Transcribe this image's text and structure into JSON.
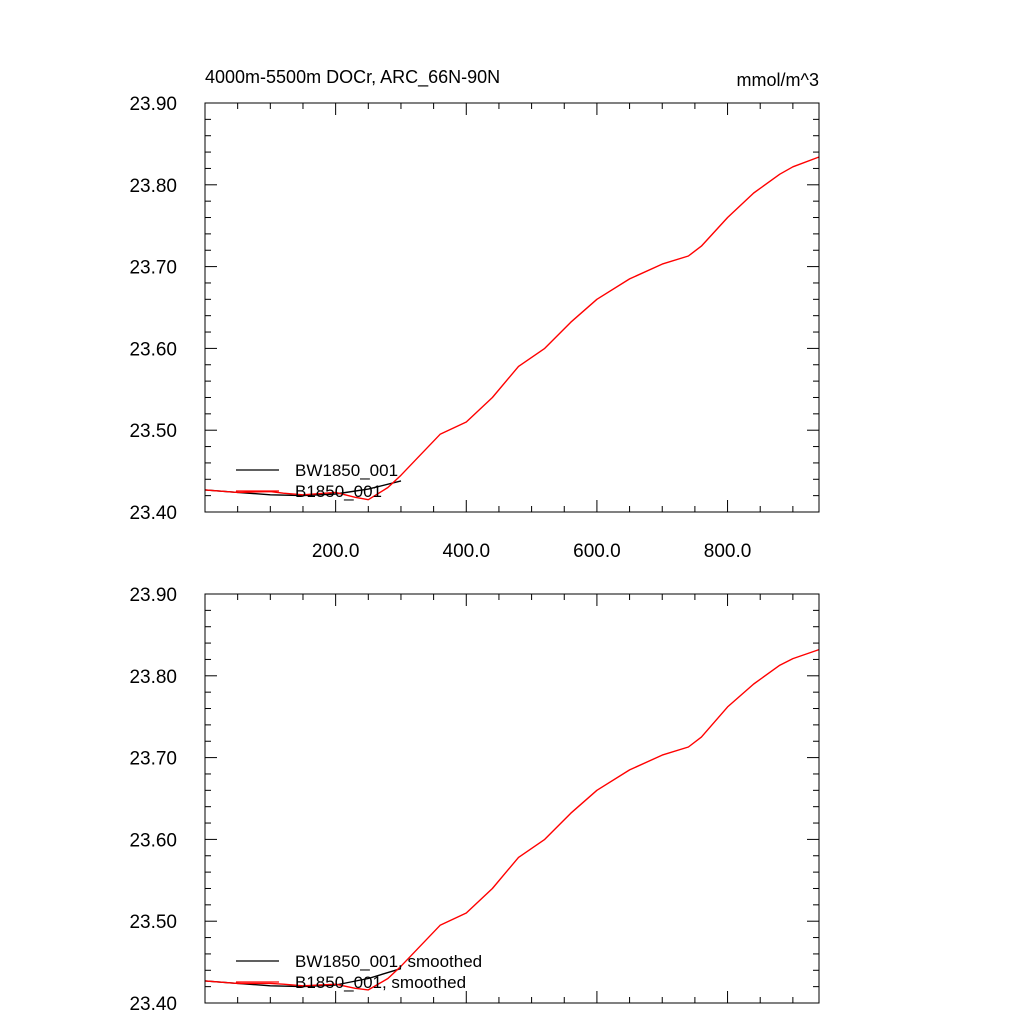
{
  "chart_data": [
    {
      "type": "line",
      "title": "4000m-5500m DOCr, ARC_66N-90N",
      "units": "mmol/m^3",
      "xlim": [
        0,
        940
      ],
      "ylim": [
        23.4,
        23.9
      ],
      "xticklabels": [
        "200.0",
        "400.0",
        "600.0",
        "800.0"
      ],
      "xtick_values": [
        200,
        400,
        600,
        800
      ],
      "yticklabels": [
        "23.40",
        "23.50",
        "23.60",
        "23.70",
        "23.80",
        "23.90"
      ],
      "ytick_values": [
        23.4,
        23.5,
        23.6,
        23.7,
        23.8,
        23.9
      ],
      "legend_position": "bottom-left",
      "series": [
        {
          "name": "BW1850_001",
          "color": "#000000",
          "x": [
            0,
            50,
            100,
            150,
            200,
            250,
            300
          ],
          "y": [
            23.427,
            23.424,
            23.421,
            23.42,
            23.422,
            23.428,
            23.438
          ]
        },
        {
          "name": "B1850_001",
          "color": "#ff0000",
          "x": [
            0,
            50,
            100,
            120,
            150,
            200,
            230,
            250,
            280,
            300,
            330,
            360,
            400,
            440,
            480,
            520,
            560,
            600,
            650,
            700,
            740,
            760,
            800,
            840,
            880,
            900,
            940
          ],
          "y": [
            23.427,
            23.424,
            23.425,
            23.423,
            23.421,
            23.424,
            23.418,
            23.415,
            23.43,
            23.445,
            23.47,
            23.495,
            23.51,
            23.54,
            23.578,
            23.6,
            23.632,
            23.66,
            23.685,
            23.703,
            23.713,
            23.725,
            23.76,
            23.79,
            23.813,
            23.822,
            23.834
          ]
        }
      ]
    },
    {
      "type": "line",
      "title": "",
      "xlim": [
        0,
        940
      ],
      "ylim": [
        23.4,
        23.9
      ],
      "xticklabels": [],
      "xtick_values": [
        200,
        400,
        600,
        800
      ],
      "yticklabels": [
        "23.40",
        "23.50",
        "23.60",
        "23.70",
        "23.80",
        "23.90"
      ],
      "ytick_values": [
        23.4,
        23.5,
        23.6,
        23.7,
        23.8,
        23.9
      ],
      "legend_position": "bottom-left",
      "series": [
        {
          "name": "BW1850_001, smoothed",
          "color": "#000000",
          "x": [
            0,
            50,
            100,
            150,
            200,
            250,
            300
          ],
          "y": [
            23.427,
            23.424,
            23.421,
            23.42,
            23.422,
            23.43,
            23.442
          ]
        },
        {
          "name": "B1850_001, smoothed",
          "color": "#ff0000",
          "x": [
            0,
            50,
            100,
            120,
            150,
            200,
            230,
            250,
            280,
            300,
            330,
            360,
            400,
            440,
            480,
            520,
            560,
            600,
            650,
            700,
            740,
            760,
            800,
            840,
            880,
            900,
            940
          ],
          "y": [
            23.427,
            23.424,
            23.424,
            23.423,
            23.421,
            23.423,
            23.418,
            23.416,
            23.43,
            23.445,
            23.47,
            23.495,
            23.51,
            23.54,
            23.578,
            23.6,
            23.632,
            23.66,
            23.685,
            23.703,
            23.713,
            23.725,
            23.762,
            23.79,
            23.813,
            23.821,
            23.832
          ]
        }
      ]
    }
  ]
}
